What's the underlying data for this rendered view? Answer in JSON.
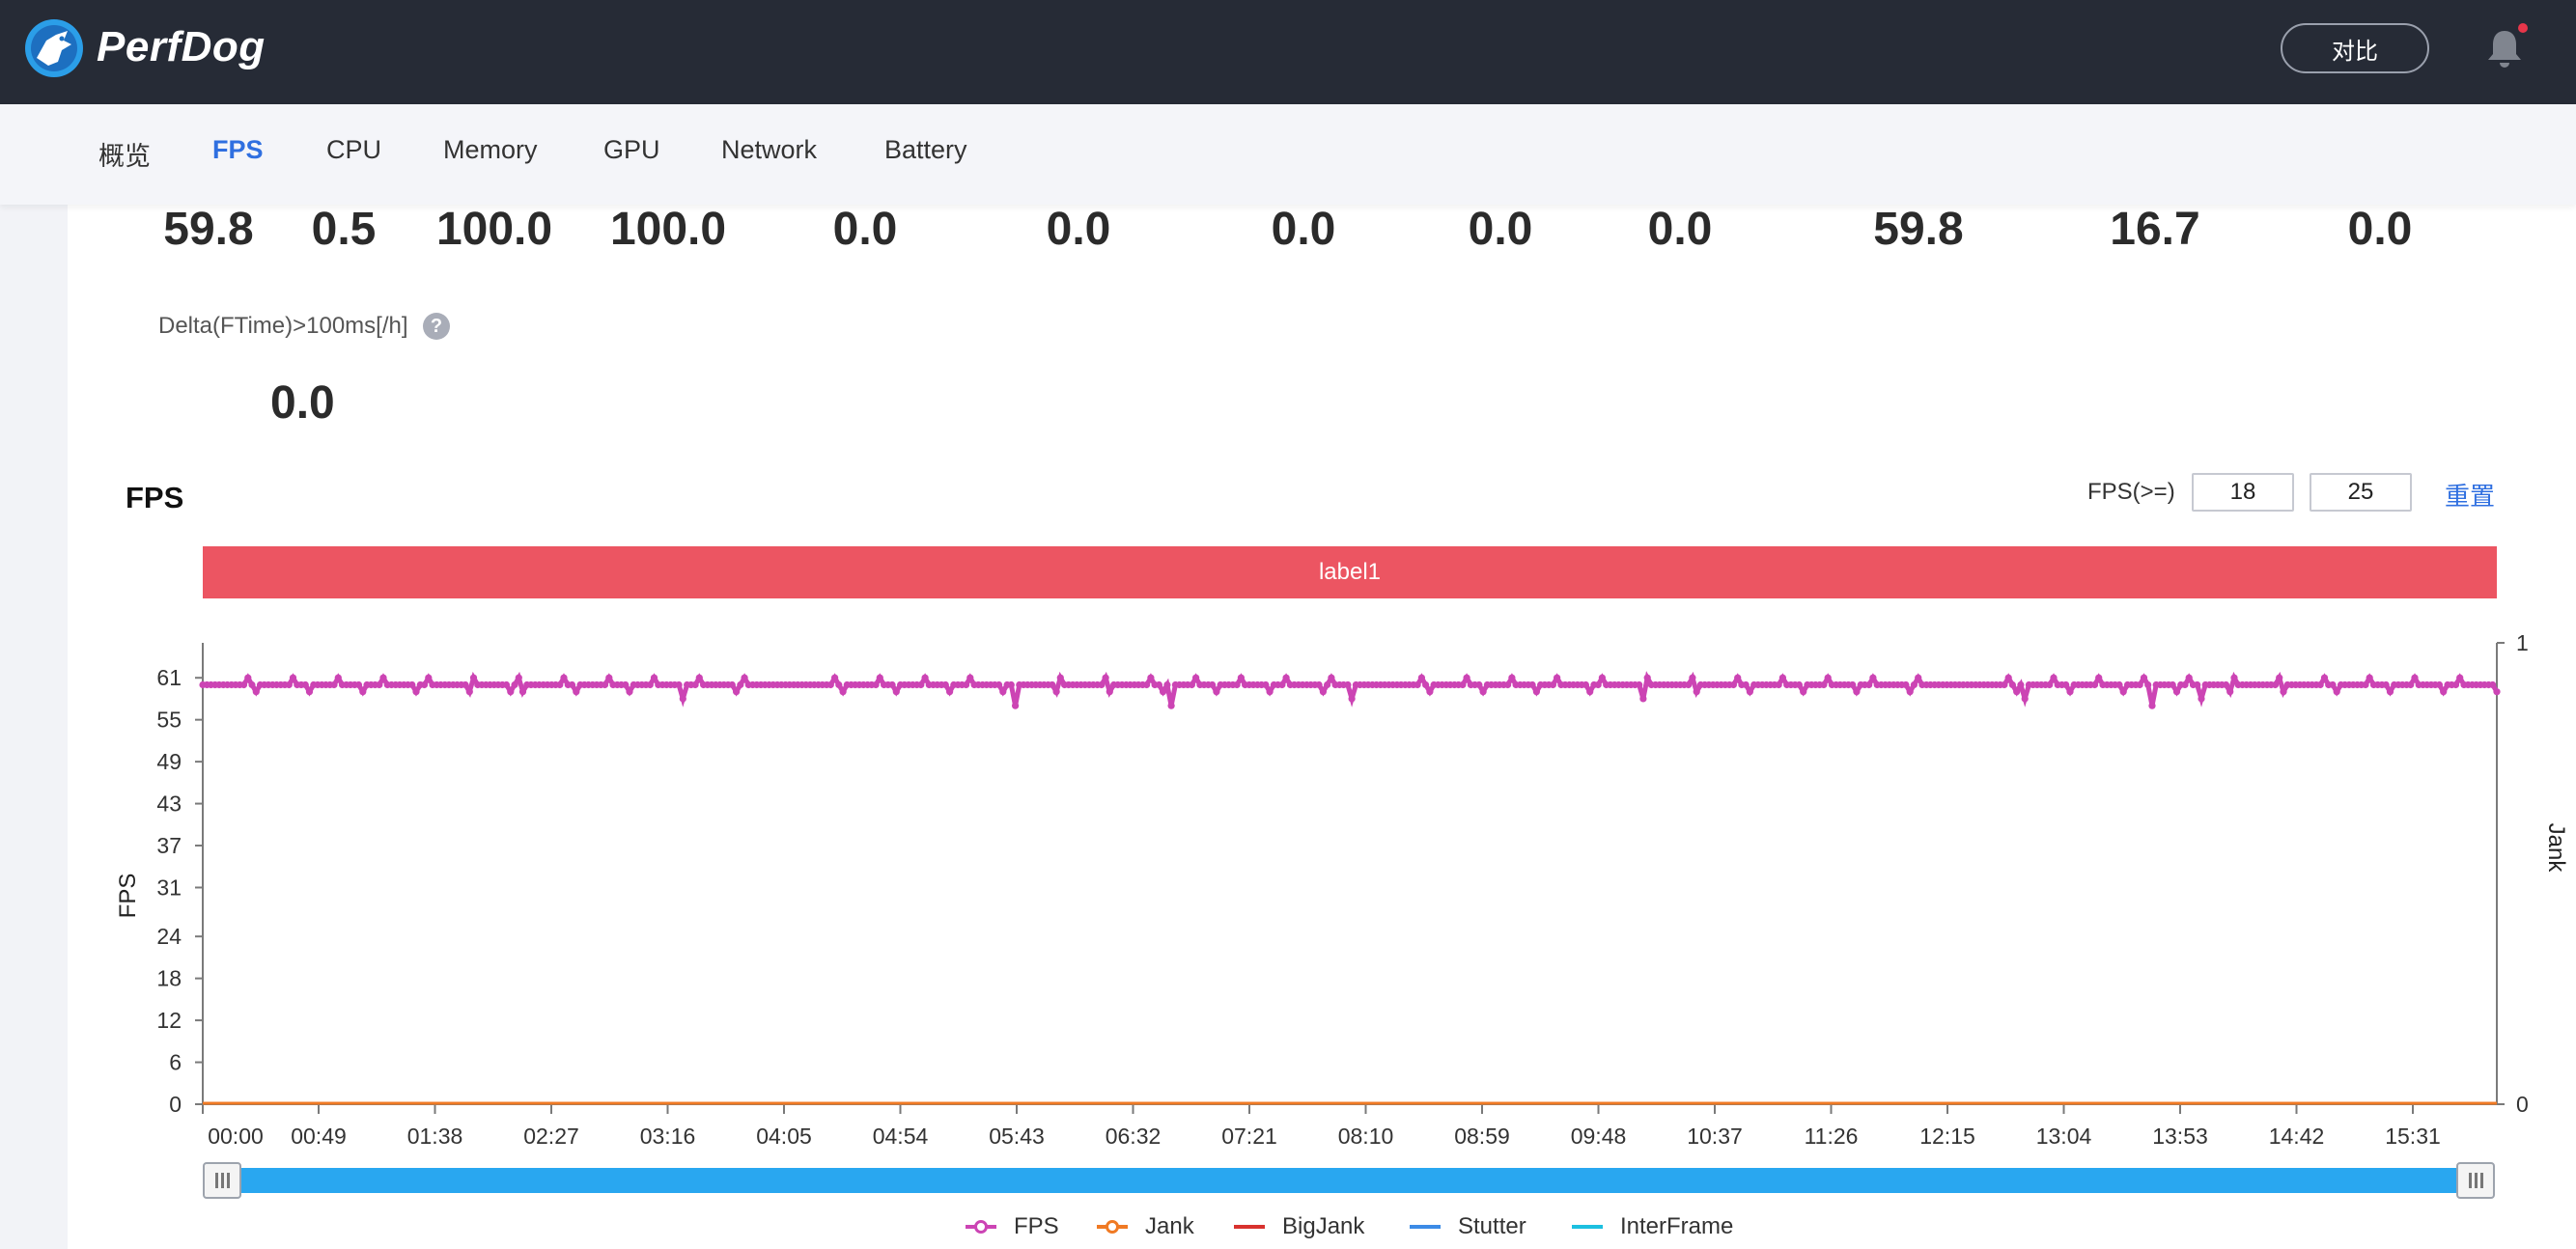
{
  "header": {
    "brand": "PerfDog",
    "compare_label": "对比",
    "icons": {
      "logo": "perfdog-logo",
      "bell": "bell-icon"
    },
    "colors": {
      "background": "#262b36",
      "notification_dot": "#e8364a"
    }
  },
  "tabs": [
    {
      "label": "概览",
      "active": false
    },
    {
      "label": "FPS",
      "active": true
    },
    {
      "label": "CPU",
      "active": false
    },
    {
      "label": "Memory",
      "active": false
    },
    {
      "label": "GPU",
      "active": false
    },
    {
      "label": "Network",
      "active": false
    },
    {
      "label": "Battery",
      "active": false
    }
  ],
  "stats": {
    "values": [
      "59.8",
      "0.5",
      "100.0",
      "100.0",
      "0.0",
      "0.0",
      "0.0",
      "0.0",
      "0.0",
      "59.8",
      "16.7",
      "0.0"
    ],
    "delta_label": "Delta(FTime)>100ms[/h]",
    "delta_help_icon": "?",
    "delta_value": "0.0"
  },
  "chart_panel": {
    "title": "FPS",
    "fps_threshold_label": "FPS(>=)",
    "threshold_1": "18",
    "threshold_2": "25",
    "reset_label": "重置",
    "label_bar": "label1",
    "label_bar_color": "#ec5562"
  },
  "chart_data": {
    "type": "line",
    "ylabel": "FPS",
    "y2label": "Jank",
    "ylim": [
      0,
      66
    ],
    "yticks": [
      "61",
      "55",
      "49",
      "43",
      "37",
      "31",
      "24",
      "18",
      "12",
      "6",
      "0"
    ],
    "y2ticks": [
      "1",
      "0"
    ],
    "xticks": [
      "00:00",
      "00:49",
      "01:38",
      "02:27",
      "03:16",
      "04:05",
      "04:54",
      "05:43",
      "06:32",
      "07:21",
      "08:10",
      "08:59",
      "09:48",
      "10:37",
      "11:26",
      "12:15",
      "13:04",
      "13:53",
      "14:42",
      "15:31"
    ],
    "x_range_seconds": [
      0,
      968
    ],
    "series": [
      {
        "name": "FPS",
        "color": "#cc44b4",
        "baseline": 60,
        "dips": [
          [
            161,
            53
          ],
          [
            47,
            58
          ],
          [
            530,
            59
          ],
          [
            709,
            58
          ],
          [
            1050,
            57
          ],
          [
            1211,
            57
          ],
          [
            1400,
            58
          ],
          [
            1700,
            58
          ],
          [
            2098,
            58
          ],
          [
            2228,
            57
          ],
          [
            2280,
            58
          ]
        ]
      },
      {
        "name": "Jank",
        "color": "#f07a24",
        "values_constant": 0
      },
      {
        "name": "BigJank",
        "color": "#d8322e",
        "values_constant": 0
      },
      {
        "name": "Stutter",
        "color": "#3c8be6",
        "values_constant": 0
      },
      {
        "name": "InterFrame",
        "color": "#1cc0e0",
        "values_constant": 0
      }
    ],
    "grid": false,
    "legend_position": "bottom-center"
  },
  "zoom": {
    "start": 0,
    "end": 1,
    "track_color": "#29a7f0"
  }
}
